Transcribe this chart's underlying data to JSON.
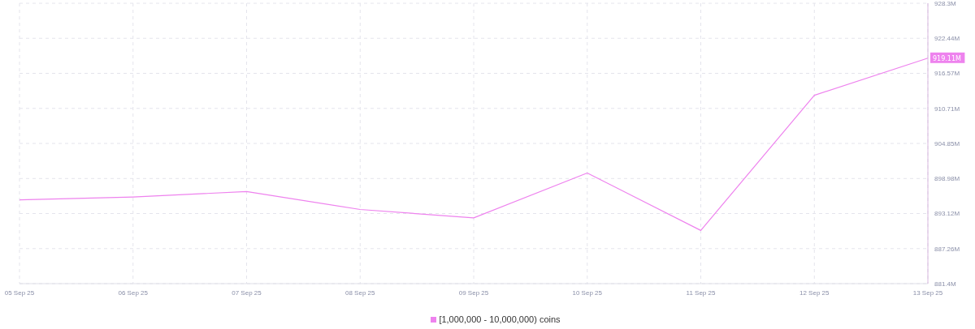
{
  "chart_data": {
    "type": "line",
    "categories": [
      "05 Sep 25",
      "06 Sep 25",
      "07 Sep 25",
      "08 Sep 25",
      "09 Sep 25",
      "10 Sep 25",
      "11 Sep 25",
      "12 Sep 25",
      "13 Sep 25"
    ],
    "series": [
      {
        "name": "[1,000,000 - 10,000,000) coins",
        "color": "#ee82ee",
        "values": [
          895.4,
          895.9,
          896.8,
          893.8,
          892.4,
          899.9,
          890.3,
          912.9,
          919.11
        ],
        "value_labels": [
          null,
          null,
          null,
          null,
          null,
          null,
          null,
          null,
          "919.11M"
        ]
      }
    ],
    "ylim": [
      881.4,
      928.3
    ],
    "yticks": [
      {
        "value": 881.4,
        "label": "881.4M"
      },
      {
        "value": 887.26,
        "label": "887.26M"
      },
      {
        "value": 893.12,
        "label": "893.12M"
      },
      {
        "value": 898.98,
        "label": "898.98M"
      },
      {
        "value": 904.85,
        "label": "904.85M"
      },
      {
        "value": 910.71,
        "label": "910.71M"
      },
      {
        "value": 916.57,
        "label": "916.57M"
      },
      {
        "value": 922.44,
        "label": "922.44M"
      },
      {
        "value": 928.3,
        "label": "928.3M"
      }
    ],
    "grid": true,
    "legend": "bottom",
    "marker": "none",
    "line_style": "solid"
  }
}
